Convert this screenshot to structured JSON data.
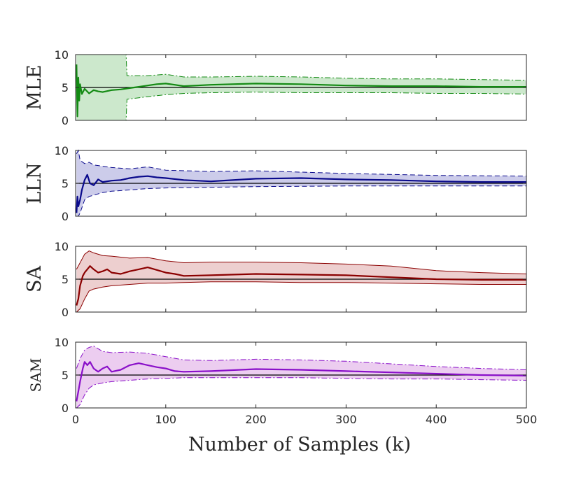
{
  "chart_data": {
    "type": "line",
    "xlabel": "Number of Samples (k)",
    "xlim": [
      0,
      500
    ],
    "xticks": [
      0,
      100,
      200,
      300,
      400,
      500
    ],
    "true_value": 5,
    "panels": [
      {
        "ylabel": "MLE",
        "ylim": [
          0,
          10
        ],
        "yticks": [
          0,
          5,
          10
        ],
        "color": "#138a13",
        "fill": "#cce8cc",
        "bound_style": "dashdot",
        "estimate": {
          "x": [
            1,
            2,
            3,
            4,
            5,
            7,
            10,
            15,
            20,
            25,
            30,
            40,
            50,
            60,
            70,
            80,
            90,
            100,
            110,
            120,
            150,
            200,
            250,
            300,
            350,
            400,
            450,
            500
          ],
          "y": [
            8.5,
            0.6,
            6.5,
            3.0,
            5.5,
            4.0,
            4.8,
            4.1,
            4.6,
            4.4,
            4.3,
            4.6,
            4.7,
            4.9,
            5.1,
            5.3,
            5.5,
            5.6,
            5.4,
            5.2,
            5.4,
            5.6,
            5.5,
            5.3,
            5.2,
            5.2,
            5.1,
            5.1
          ]
        },
        "upper": {
          "x": [
            1,
            56,
            57,
            80,
            100,
            120,
            150,
            200,
            250,
            300,
            350,
            400,
            450,
            500
          ],
          "y": [
            10,
            10,
            6.8,
            6.8,
            7.0,
            6.6,
            6.6,
            6.7,
            6.6,
            6.4,
            6.3,
            6.3,
            6.2,
            6.1
          ]
        },
        "lower": {
          "x": [
            1,
            56,
            57,
            80,
            100,
            120,
            150,
            200,
            250,
            300,
            350,
            400,
            450,
            500
          ],
          "y": [
            0,
            0,
            3.2,
            3.6,
            3.9,
            4.1,
            4.2,
            4.3,
            4.2,
            4.2,
            4.2,
            4.1,
            4.1,
            4.0
          ]
        }
      },
      {
        "ylabel": "LLN",
        "ylim": [
          0,
          10
        ],
        "yticks": [
          0,
          5,
          10
        ],
        "color": "#0a0a8c",
        "fill": "#ccccea",
        "bound_style": "dashed",
        "estimate": {
          "x": [
            1,
            2,
            3,
            5,
            7,
            10,
            13,
            16,
            20,
            25,
            30,
            40,
            50,
            60,
            70,
            80,
            90,
            100,
            120,
            150,
            200,
            250,
            300,
            350,
            400,
            450,
            500
          ],
          "y": [
            0.5,
            3.0,
            1.5,
            2.5,
            4.0,
            5.5,
            6.3,
            5.0,
            4.7,
            5.6,
            5.2,
            5.4,
            5.5,
            5.8,
            6.0,
            6.1,
            5.9,
            5.8,
            5.5,
            5.3,
            5.7,
            5.8,
            5.6,
            5.5,
            5.3,
            5.2,
            5.2
          ]
        },
        "upper": {
          "x": [
            1,
            3,
            5,
            10,
            15,
            20,
            30,
            40,
            60,
            80,
            100,
            150,
            200,
            300,
            400,
            500
          ],
          "y": [
            9.5,
            10.0,
            8.5,
            8.0,
            8.2,
            7.8,
            7.6,
            7.4,
            7.2,
            7.5,
            7.0,
            6.8,
            6.9,
            6.5,
            6.2,
            6.1
          ]
        },
        "lower": {
          "x": [
            1,
            3,
            5,
            10,
            15,
            20,
            30,
            40,
            60,
            80,
            100,
            150,
            200,
            300,
            400,
            500
          ],
          "y": [
            0,
            0,
            0.5,
            2.5,
            3.0,
            3.2,
            3.6,
            3.8,
            4.0,
            4.2,
            4.3,
            4.4,
            4.5,
            4.6,
            4.6,
            4.6
          ]
        }
      },
      {
        "ylabel": "SA",
        "ylim": [
          0,
          10
        ],
        "yticks": [
          0,
          5,
          10
        ],
        "color": "#8b0000",
        "fill": "#edcfcf",
        "bound_style": "solid",
        "estimate": {
          "x": [
            1,
            3,
            5,
            8,
            10,
            13,
            16,
            20,
            25,
            30,
            35,
            40,
            50,
            60,
            70,
            80,
            90,
            100,
            110,
            120,
            150,
            200,
            250,
            300,
            350,
            400,
            450,
            500
          ],
          "y": [
            1.0,
            2.0,
            4.0,
            5.5,
            6.0,
            6.5,
            7.0,
            6.5,
            6.0,
            6.2,
            6.5,
            6.0,
            5.8,
            6.2,
            6.5,
            6.8,
            6.4,
            6.0,
            5.8,
            5.5,
            5.6,
            5.8,
            5.7,
            5.6,
            5.3,
            5.0,
            4.9,
            4.9
          ]
        },
        "upper": {
          "x": [
            1,
            5,
            10,
            15,
            20,
            30,
            40,
            60,
            80,
            100,
            120,
            150,
            200,
            250,
            300,
            350,
            400,
            450,
            500
          ],
          "y": [
            6.5,
            7.5,
            8.8,
            9.3,
            9.0,
            8.6,
            8.5,
            8.2,
            8.3,
            7.8,
            7.5,
            7.6,
            7.6,
            7.5,
            7.3,
            7.0,
            6.3,
            6.0,
            5.8
          ]
        },
        "lower": {
          "x": [
            1,
            5,
            10,
            15,
            20,
            30,
            40,
            60,
            80,
            100,
            120,
            150,
            200,
            250,
            300,
            350,
            400,
            450,
            500
          ],
          "y": [
            0,
            0.5,
            2.0,
            3.2,
            3.5,
            3.8,
            4.0,
            4.2,
            4.4,
            4.4,
            4.5,
            4.6,
            4.6,
            4.5,
            4.5,
            4.4,
            4.3,
            4.2,
            4.2
          ]
        }
      },
      {
        "ylabel": "SAM",
        "ylim": [
          0,
          10
        ],
        "yticks": [
          0,
          5,
          10
        ],
        "color": "#8a10c9",
        "fill": "#eccdf0",
        "bound_style": "dashdot",
        "estimate": {
          "x": [
            1,
            3,
            5,
            8,
            10,
            13,
            16,
            20,
            25,
            30,
            35,
            40,
            50,
            60,
            70,
            80,
            90,
            100,
            110,
            120,
            150,
            200,
            250,
            300,
            350,
            400,
            450,
            500
          ],
          "y": [
            1.0,
            2.5,
            4.0,
            6.0,
            7.0,
            6.5,
            7.0,
            6.0,
            5.5,
            6.0,
            6.3,
            5.5,
            5.8,
            6.5,
            6.8,
            6.5,
            6.2,
            6.0,
            5.6,
            5.5,
            5.6,
            5.9,
            5.8,
            5.6,
            5.4,
            5.2,
            5.0,
            4.9
          ]
        },
        "upper": {
          "x": [
            1,
            5,
            10,
            15,
            20,
            30,
            40,
            60,
            80,
            100,
            120,
            150,
            200,
            250,
            300,
            350,
            400,
            450,
            500
          ],
          "y": [
            6.0,
            7.5,
            8.8,
            9.2,
            9.4,
            8.6,
            8.4,
            8.5,
            8.3,
            7.8,
            7.3,
            7.2,
            7.4,
            7.3,
            7.1,
            6.7,
            6.3,
            6.0,
            5.8
          ]
        },
        "lower": {
          "x": [
            1,
            5,
            10,
            15,
            20,
            30,
            40,
            60,
            80,
            100,
            120,
            150,
            200,
            250,
            300,
            350,
            400,
            450,
            500
          ],
          "y": [
            0,
            0.5,
            2.0,
            3.0,
            3.5,
            3.8,
            4.0,
            4.2,
            4.4,
            4.5,
            4.6,
            4.6,
            4.6,
            4.6,
            4.5,
            4.4,
            4.4,
            4.3,
            4.2
          ]
        }
      }
    ]
  }
}
